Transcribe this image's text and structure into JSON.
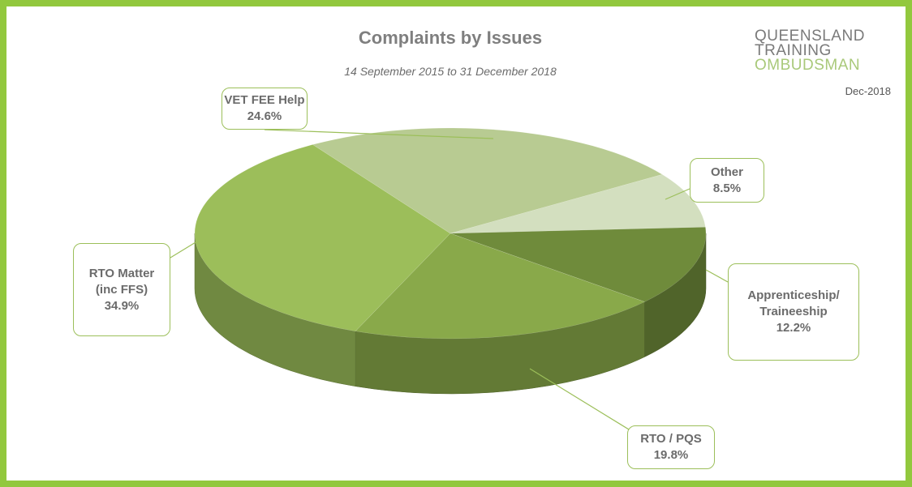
{
  "branding": {
    "logo": [
      "QUEENSLAND",
      "TRAINING",
      "OMBUDSMAN"
    ],
    "date": "Dec-2018"
  },
  "chart_data": {
    "type": "pie",
    "title": "Complaints by Issues",
    "subtitle": "14 September 2015 to 31 December 2018",
    "categories": [
      "Other",
      "Apprenticeship/\nTraineeship",
      "RTO / PQS",
      "RTO Matter\n(inc FFS)",
      "VET FEE Help"
    ],
    "values": [
      8.5,
      12.2,
      19.8,
      34.9,
      24.6
    ],
    "value_labels": [
      "8.5%",
      "12.2%",
      "19.8%",
      "34.9%",
      "24.6%"
    ],
    "colors": [
      "#d3dfbf",
      "#6f8b3b",
      "#89a94a",
      "#9cbe5a",
      "#b8cb92"
    ]
  }
}
